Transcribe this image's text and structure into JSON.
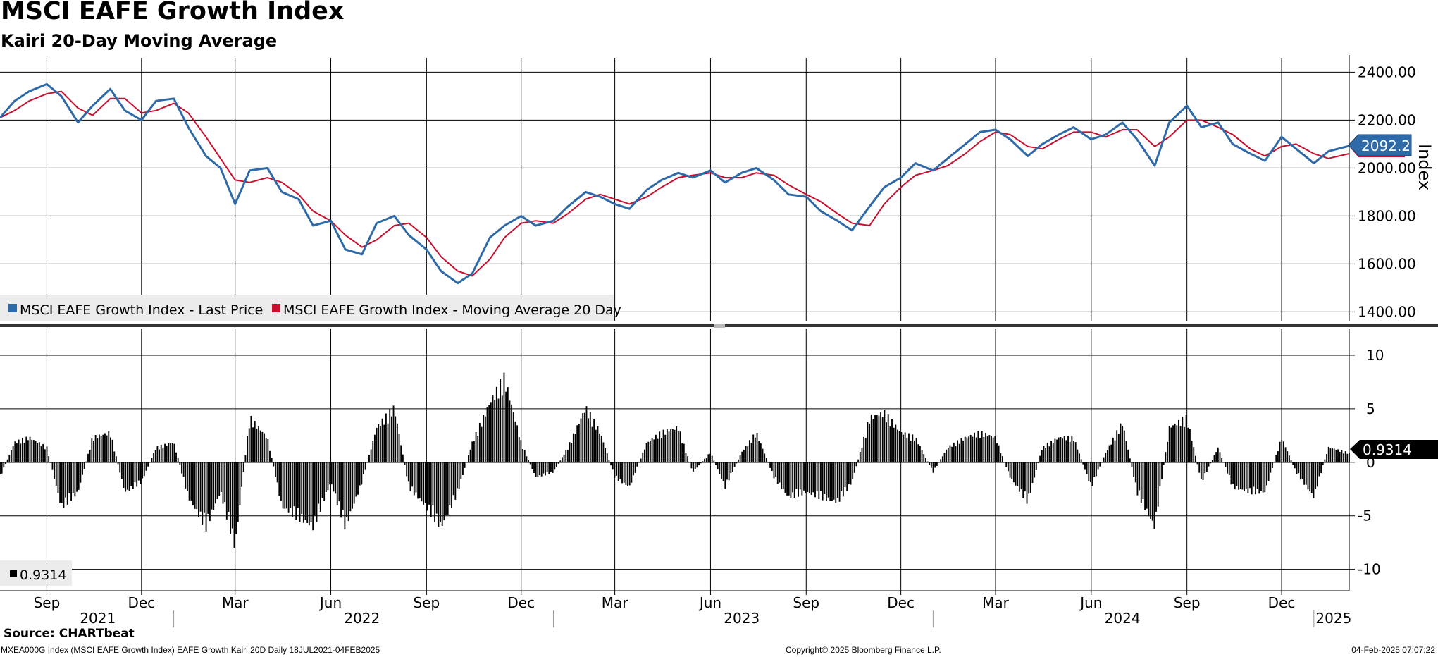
{
  "header": {
    "title": "MSCI EAFE Growth Index",
    "subtitle": "Kairi 20-Day Moving Average"
  },
  "footer": {
    "source": "Source: CHARTbeat",
    "description": "MXEA000G Index (MSCI EAFE Growth Index) EAFE Growth Kairi 20D  Daily 18JUL2021-04FEB2025",
    "copyright": "Copyright© 2025 Bloomberg Finance L.P.",
    "timestamp": "04-Feb-2025 07:07:22"
  },
  "colors": {
    "price": "#2f6aa8",
    "moving_average": "#c8102e",
    "kairi": "#000000",
    "grid": "#000000",
    "legend_bg": "#ececec"
  },
  "chart_data": [
    {
      "type": "line",
      "ylabel": "Index",
      "ylim": [
        1360,
        2460
      ],
      "yticks": [
        "1400.00",
        "1600.00",
        "1800.00",
        "2000.00",
        "2200.00",
        "2400.00"
      ],
      "ytick_values": [
        1400,
        1600,
        1800,
        2000,
        2200,
        2400
      ],
      "last_value_label": "2092.28",
      "legend": [
        "MSCI EAFE Growth Index - Last Price",
        "MSCI EAFE Growth Index - Moving Average 20 Day"
      ],
      "legend_placement": "bottom-left",
      "x": [
        "2021-07-18",
        "2021-08-01",
        "2021-08-15",
        "2021-09-01",
        "2021-09-15",
        "2021-10-01",
        "2021-10-15",
        "2021-11-01",
        "2021-11-15",
        "2021-12-01",
        "2021-12-15",
        "2022-01-01",
        "2022-01-15",
        "2022-02-01",
        "2022-02-15",
        "2022-03-01",
        "2022-03-15",
        "2022-04-01",
        "2022-04-15",
        "2022-05-01",
        "2022-05-15",
        "2022-06-01",
        "2022-06-15",
        "2022-07-01",
        "2022-07-15",
        "2022-08-01",
        "2022-08-15",
        "2022-09-01",
        "2022-09-15",
        "2022-10-01",
        "2022-10-15",
        "2022-11-01",
        "2022-11-15",
        "2022-12-01",
        "2022-12-15",
        "2023-01-01",
        "2023-01-15",
        "2023-02-01",
        "2023-02-15",
        "2023-03-01",
        "2023-03-15",
        "2023-04-01",
        "2023-04-15",
        "2023-05-01",
        "2023-05-15",
        "2023-06-01",
        "2023-06-15",
        "2023-07-01",
        "2023-07-15",
        "2023-08-01",
        "2023-08-15",
        "2023-09-01",
        "2023-09-15",
        "2023-10-01",
        "2023-10-15",
        "2023-11-01",
        "2023-11-15",
        "2023-12-01",
        "2023-12-15",
        "2024-01-01",
        "2024-01-15",
        "2024-02-01",
        "2024-02-15",
        "2024-03-01",
        "2024-03-15",
        "2024-04-01",
        "2024-04-15",
        "2024-05-01",
        "2024-05-15",
        "2024-06-01",
        "2024-06-15",
        "2024-07-01",
        "2024-07-15",
        "2024-08-01",
        "2024-08-15",
        "2024-09-01",
        "2024-09-15",
        "2024-10-01",
        "2024-10-15",
        "2024-11-01",
        "2024-11-15",
        "2024-12-01",
        "2024-12-15",
        "2025-01-01",
        "2025-01-15",
        "2025-02-04"
      ],
      "series": [
        {
          "name": "MSCI EAFE Growth Index - Last Price",
          "values": [
            2210,
            2280,
            2320,
            2350,
            2300,
            2190,
            2260,
            2330,
            2240,
            2200,
            2280,
            2290,
            2170,
            2050,
            2000,
            1850,
            1990,
            2000,
            1900,
            1870,
            1760,
            1780,
            1660,
            1640,
            1770,
            1800,
            1720,
            1660,
            1570,
            1520,
            1560,
            1710,
            1760,
            1800,
            1760,
            1780,
            1840,
            1900,
            1880,
            1850,
            1830,
            1910,
            1950,
            1980,
            1960,
            1990,
            1940,
            1980,
            2000,
            1950,
            1890,
            1880,
            1820,
            1780,
            1740,
            1840,
            1920,
            1960,
            2020,
            1990,
            2040,
            2100,
            2150,
            2160,
            2120,
            2050,
            2100,
            2140,
            2170,
            2120,
            2140,
            2190,
            2120,
            2010,
            2190,
            2260,
            2170,
            2190,
            2100,
            2060,
            2030,
            2130,
            2080,
            2020,
            2070,
            2092.28
          ]
        },
        {
          "name": "MSCI EAFE Growth Index - Moving Average 20 Day",
          "values": [
            2210,
            2240,
            2280,
            2310,
            2320,
            2250,
            2220,
            2290,
            2290,
            2230,
            2240,
            2270,
            2230,
            2130,
            2040,
            1950,
            1940,
            1960,
            1940,
            1890,
            1820,
            1780,
            1720,
            1670,
            1700,
            1760,
            1770,
            1710,
            1630,
            1570,
            1550,
            1620,
            1710,
            1770,
            1780,
            1770,
            1810,
            1870,
            1890,
            1870,
            1850,
            1880,
            1920,
            1960,
            1970,
            1980,
            1960,
            1960,
            1980,
            1970,
            1930,
            1890,
            1860,
            1810,
            1770,
            1760,
            1850,
            1920,
            1970,
            1990,
            2010,
            2060,
            2110,
            2150,
            2140,
            2090,
            2080,
            2120,
            2150,
            2150,
            2130,
            2160,
            2160,
            2090,
            2130,
            2200,
            2200,
            2170,
            2140,
            2080,
            2050,
            2090,
            2100,
            2060,
            2040,
            2060
          ]
        }
      ]
    },
    {
      "type": "bar",
      "ylabel": "",
      "ylim": [
        -12,
        12.5
      ],
      "yticks": [
        "-10",
        "-5",
        "0",
        "5",
        "10"
      ],
      "ytick_values": [
        -10,
        -5,
        0,
        5,
        10
      ],
      "last_value_label": "0.9314",
      "legend": [
        "0.9314"
      ],
      "legend_placement": "bottom-left",
      "x": [
        "2021-07-18",
        "2021-08-01",
        "2021-08-15",
        "2021-09-01",
        "2021-09-15",
        "2021-10-01",
        "2021-10-15",
        "2021-11-01",
        "2021-11-15",
        "2021-12-01",
        "2021-12-15",
        "2022-01-01",
        "2022-01-15",
        "2022-02-01",
        "2022-02-15",
        "2022-03-01",
        "2022-03-15",
        "2022-04-01",
        "2022-04-15",
        "2022-05-01",
        "2022-05-15",
        "2022-06-01",
        "2022-06-15",
        "2022-07-01",
        "2022-07-15",
        "2022-08-01",
        "2022-08-15",
        "2022-09-01",
        "2022-09-15",
        "2022-10-01",
        "2022-10-15",
        "2022-11-01",
        "2022-11-15",
        "2022-12-01",
        "2022-12-15",
        "2023-01-01",
        "2023-01-15",
        "2023-02-01",
        "2023-02-15",
        "2023-03-01",
        "2023-03-15",
        "2023-04-01",
        "2023-04-15",
        "2023-05-01",
        "2023-05-15",
        "2023-06-01",
        "2023-06-15",
        "2023-07-01",
        "2023-07-15",
        "2023-08-01",
        "2023-08-15",
        "2023-09-01",
        "2023-09-15",
        "2023-10-01",
        "2023-10-15",
        "2023-11-01",
        "2023-11-15",
        "2023-12-01",
        "2023-12-15",
        "2024-01-01",
        "2024-01-15",
        "2024-02-01",
        "2024-02-15",
        "2024-03-01",
        "2024-03-15",
        "2024-04-01",
        "2024-04-15",
        "2024-05-01",
        "2024-05-15",
        "2024-06-01",
        "2024-06-15",
        "2024-07-01",
        "2024-07-15",
        "2024-08-01",
        "2024-08-15",
        "2024-09-01",
        "2024-09-15",
        "2024-10-01",
        "2024-10-15",
        "2024-11-01",
        "2024-11-15",
        "2024-12-01",
        "2024-12-15",
        "2025-01-01",
        "2025-01-15",
        "2025-02-04"
      ],
      "series": [
        {
          "name": "0.9314",
          "values": [
            -1.5,
            2,
            2.5,
            1.5,
            -4.5,
            -3,
            2.5,
            3,
            -3,
            -2,
            1.5,
            2,
            -3.5,
            -6.5,
            -3,
            -8.5,
            4.5,
            2.5,
            -4.5,
            -5.5,
            -6.5,
            -2,
            -6.5,
            -2,
            3.5,
            5.5,
            -2.5,
            -4.5,
            -6.5,
            -3,
            2,
            6,
            8.5,
            2,
            -1.5,
            -1,
            1.5,
            5.5,
            3,
            -1.5,
            -2.5,
            2,
            3,
            3.5,
            -1,
            1,
            -2.5,
            1,
            3,
            -1.5,
            -3.5,
            -3,
            -3.5,
            -4,
            -2,
            4.5,
            5,
            3,
            2.5,
            -1,
            1.5,
            2.5,
            3,
            2.5,
            -1.5,
            -4,
            1.5,
            2.5,
            2.5,
            -2.5,
            1,
            4,
            -3,
            -6.5,
            3.5,
            4.5,
            -2,
            1.5,
            -2.5,
            -3,
            -3,
            2.5,
            -1,
            -3.5,
            1.5,
            0.9314
          ]
        }
      ]
    }
  ],
  "x_axis": {
    "month_labels": [
      "Sep",
      "Dec",
      "Mar",
      "Jun",
      "Sep",
      "Dec",
      "Mar",
      "Jun",
      "Sep",
      "Dec",
      "Mar",
      "Jun",
      "Sep",
      "Dec"
    ],
    "month_dates": [
      "2021-09-01",
      "2021-12-01",
      "2022-03-01",
      "2022-06-01",
      "2022-09-01",
      "2022-12-01",
      "2023-03-01",
      "2023-06-01",
      "2023-09-01",
      "2023-12-01",
      "2024-03-01",
      "2024-06-01",
      "2024-09-01",
      "2024-12-01"
    ],
    "year_labels": [
      "2021",
      "2022",
      "2023",
      "2024",
      "2025"
    ],
    "year_dates": [
      "2021-10-20",
      "2022-07-01",
      "2023-07-01",
      "2024-07-01",
      "2025-01-20"
    ],
    "year_separators": [
      "2022-01-01",
      "2023-01-01",
      "2024-01-01",
      "2025-01-01"
    ]
  }
}
